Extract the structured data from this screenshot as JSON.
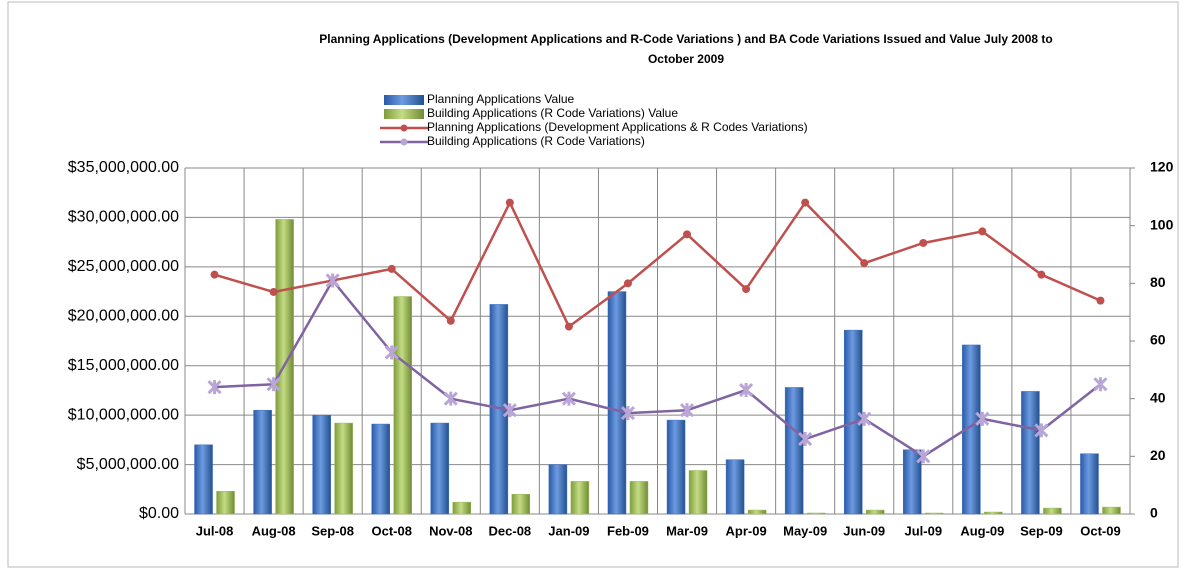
{
  "chart_data": {
    "type": "bar-line",
    "title": [
      "Planning Applications (Development Applications and R-Code Variations )  and BA Code Variations Issued and Value July 2008 to",
      "October 2009"
    ],
    "categories": [
      "Jul-08",
      "Aug-08",
      "Sep-08",
      "Oct-08",
      "Nov-08",
      "Dec-08",
      "Jan-09",
      "Feb-09",
      "Mar-09",
      "Apr-09",
      "May-09",
      "Jun-09",
      "Jul-09",
      "Aug-09",
      "Sep-09",
      "Oct-09"
    ],
    "series": [
      {
        "name": "Planning Applications Value",
        "type": "bar",
        "color": "#3c6fc0",
        "values": [
          7000000,
          10500000,
          10000000,
          9100000,
          9200000,
          21200000,
          5000000,
          22500000,
          9500000,
          5500000,
          12800000,
          18600000,
          6500000,
          17100000,
          12400000,
          6100000
        ]
      },
      {
        "name": "Building Applications  (R Code Variations) Value",
        "type": "bar",
        "color": "#9bbb59",
        "values": [
          2300000,
          29800000,
          9200000,
          22000000,
          1200000,
          2000000,
          3300000,
          3300000,
          4400000,
          400000,
          100000,
          400000,
          100000,
          200000,
          600000,
          700000
        ]
      },
      {
        "name": "Planning Applications  (Development Applications & R Codes Variations)",
        "type": "line",
        "axis": "y2",
        "color": "#c0504d",
        "values": [
          83,
          77,
          81,
          85,
          67,
          108,
          65,
          80,
          97,
          78,
          108,
          87,
          94,
          98,
          83,
          74
        ]
      },
      {
        "name": "Building Applications  (R Code Variations)",
        "type": "line",
        "axis": "y2",
        "color": "#8064a2",
        "values": [
          44,
          45,
          81,
          56,
          40,
          36,
          40,
          35,
          36,
          43,
          26,
          33,
          20,
          33,
          29,
          45
        ]
      }
    ],
    "ylim": [
      0,
      35000000
    ],
    "yticks": [
      {
        "value": 0,
        "label": "$0.00"
      },
      {
        "value": 5000000,
        "label": "$5,000,000.00"
      },
      {
        "value": 10000000,
        "label": "$10,000,000.00"
      },
      {
        "value": 15000000,
        "label": "$15,000,000.00"
      },
      {
        "value": 20000000,
        "label": "$20,000,000.00"
      },
      {
        "value": 25000000,
        "label": "$25,000,000.00"
      },
      {
        "value": 30000000,
        "label": "$30,000,000.00"
      },
      {
        "value": 35000000,
        "label": "$35,000,000.00"
      }
    ],
    "y2lim": [
      0,
      120
    ],
    "y2ticks": [
      0,
      20,
      40,
      60,
      80,
      100,
      120
    ],
    "grid": true
  }
}
